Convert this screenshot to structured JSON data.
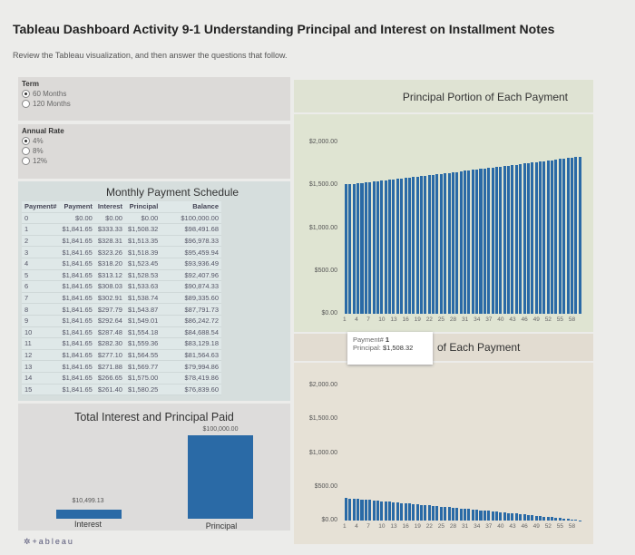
{
  "header": {
    "title": "Tableau Dashboard Activity 9-1 Understanding Principal and Interest on Installment Notes",
    "subtitle": "Review the Tableau visualization, and then answer the questions that follow."
  },
  "filters": {
    "term": {
      "label": "Term",
      "options": [
        "60 Months",
        "120 Months"
      ],
      "selected": "60 Months"
    },
    "rate": {
      "label": "Annual Rate",
      "options": [
        "4%",
        "8%",
        "12%"
      ],
      "selected": "4%"
    }
  },
  "schedule": {
    "title": "Monthly Payment Schedule",
    "columns": [
      "Payment#",
      "Payment",
      "Interest",
      "Principal",
      "Balance"
    ],
    "rows": [
      [
        "0",
        "$0.00",
        "$0.00",
        "$0.00",
        "$100,000.00"
      ],
      [
        "1",
        "$1,841.65",
        "$333.33",
        "$1,508.32",
        "$98,491.68"
      ],
      [
        "2",
        "$1,841.65",
        "$328.31",
        "$1,513.35",
        "$96,978.33"
      ],
      [
        "3",
        "$1,841.65",
        "$323.26",
        "$1,518.39",
        "$95,459.94"
      ],
      [
        "4",
        "$1,841.65",
        "$318.20",
        "$1,523.45",
        "$93,936.49"
      ],
      [
        "5",
        "$1,841.65",
        "$313.12",
        "$1,528.53",
        "$92,407.96"
      ],
      [
        "6",
        "$1,841.65",
        "$308.03",
        "$1,533.63",
        "$90,874.33"
      ],
      [
        "7",
        "$1,841.65",
        "$302.91",
        "$1,538.74",
        "$89,335.60"
      ],
      [
        "8",
        "$1,841.65",
        "$297.79",
        "$1,543.87",
        "$87,791.73"
      ],
      [
        "9",
        "$1,841.65",
        "$292.64",
        "$1,549.01",
        "$86,242.72"
      ],
      [
        "10",
        "$1,841.65",
        "$287.48",
        "$1,554.18",
        "$84,688.54"
      ],
      [
        "11",
        "$1,841.65",
        "$282.30",
        "$1,559.36",
        "$83,129.18"
      ],
      [
        "12",
        "$1,841.65",
        "$277.10",
        "$1,564.55",
        "$81,564.63"
      ],
      [
        "13",
        "$1,841.65",
        "$271.88",
        "$1,569.77",
        "$79,994.86"
      ],
      [
        "14",
        "$1,841.65",
        "$266.65",
        "$1,575.00",
        "$78,419.86"
      ],
      [
        "15",
        "$1,841.65",
        "$261.40",
        "$1,580.25",
        "$76,839.60"
      ]
    ]
  },
  "totals": {
    "title": "Total Interest and Principal Paid",
    "type": "bar",
    "categories": [
      "Interest",
      "Principal"
    ],
    "values": [
      10499.13,
      100000.0
    ],
    "labels": [
      "$10,499.13",
      "$100,000.00"
    ]
  },
  "tooltip": {
    "k1": "Payment#",
    "v1": "1",
    "k2": "Principal:",
    "v2": "$1,508.32"
  },
  "footer": {
    "logo": "+ableau"
  },
  "colors": {
    "bar": "#2a6aa6",
    "bar_dark": "#1c4f82"
  },
  "chart_data": [
    {
      "type": "bar",
      "title": "Principal Portion of Each Payment",
      "ylim": [
        0,
        2000
      ],
      "yticks": [
        "$2,000.00",
        "$1,500.00",
        "$1,000.00",
        "$500.00",
        "$0.00"
      ],
      "xticks": [
        "1",
        "4",
        "7",
        "10",
        "13",
        "16",
        "19",
        "22",
        "25",
        "28",
        "31",
        "34",
        "37",
        "40",
        "43",
        "46",
        "49",
        "52",
        "55",
        "58"
      ],
      "values": [
        1508.32,
        1513.35,
        1518.39,
        1523.45,
        1528.53,
        1533.63,
        1538.74,
        1543.87,
        1549.01,
        1554.18,
        1559.36,
        1564.55,
        1569.77,
        1575.0,
        1580.25,
        1585.52,
        1590.8,
        1596.11,
        1601.43,
        1606.77,
        1612.12,
        1617.49,
        1622.89,
        1628.3,
        1633.72,
        1639.17,
        1644.63,
        1650.11,
        1655.61,
        1661.13,
        1666.67,
        1672.22,
        1677.8,
        1683.39,
        1689.0,
        1694.63,
        1700.28,
        1705.95,
        1711.63,
        1717.34,
        1723.06,
        1728.81,
        1734.57,
        1740.35,
        1746.15,
        1751.97,
        1757.81,
        1763.67,
        1769.55,
        1775.45,
        1781.37,
        1787.31,
        1793.27,
        1799.24,
        1805.24,
        1811.26,
        1817.3,
        1823.35,
        1829.43,
        1835.53
      ]
    },
    {
      "type": "bar",
      "title": "of Each Payment",
      "ylim": [
        0,
        2000
      ],
      "yticks": [
        "$2,000.00",
        "$1,500.00",
        "$1,000.00",
        "$500.00",
        "$0.00"
      ],
      "xticks": [
        "1",
        "4",
        "7",
        "10",
        "13",
        "16",
        "19",
        "22",
        "25",
        "28",
        "31",
        "34",
        "37",
        "40",
        "43",
        "46",
        "49",
        "52",
        "55",
        "58"
      ],
      "values": [
        333.33,
        328.31,
        323.26,
        318.2,
        313.12,
        308.03,
        302.91,
        297.79,
        292.64,
        287.48,
        282.3,
        277.1,
        271.88,
        266.65,
        261.4,
        256.13,
        250.85,
        245.54,
        240.22,
        234.88,
        229.53,
        224.16,
        218.76,
        213.35,
        207.93,
        202.48,
        197.02,
        191.54,
        186.04,
        180.52,
        174.98,
        169.43,
        163.85,
        158.26,
        152.65,
        147.02,
        141.37,
        135.7,
        130.02,
        124.31,
        118.59,
        112.84,
        107.08,
        101.3,
        95.5,
        89.68,
        83.84,
        77.98,
        72.1,
        66.2,
        60.28,
        54.34,
        48.38,
        42.41,
        36.41,
        30.39,
        24.35,
        18.3,
        12.22,
        6.12
      ]
    }
  ]
}
